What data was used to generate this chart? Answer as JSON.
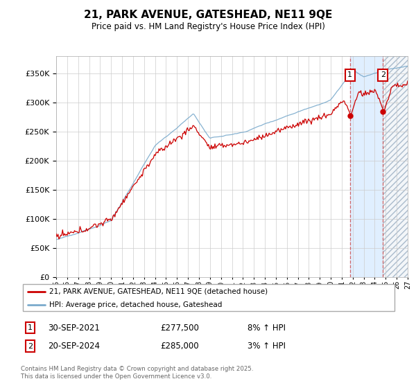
{
  "title": "21, PARK AVENUE, GATESHEAD, NE11 9QE",
  "subtitle": "Price paid vs. HM Land Registry's House Price Index (HPI)",
  "legend_line1": "21, PARK AVENUE, GATESHEAD, NE11 9QE (detached house)",
  "legend_line2": "HPI: Average price, detached house, Gateshead",
  "red_color": "#cc0000",
  "blue_color": "#7aaacc",
  "sale1_date": "30-SEP-2021",
  "sale1_price": "£277,500",
  "sale1_hpi": "8% ↑ HPI",
  "sale2_date": "20-SEP-2024",
  "sale2_price": "£285,000",
  "sale2_hpi": "3% ↑ HPI",
  "footnote": "Contains HM Land Registry data © Crown copyright and database right 2025.\nThis data is licensed under the Open Government Licence v3.0.",
  "ylim_min": 0,
  "ylim_max": 380000,
  "yticks": [
    0,
    50000,
    100000,
    150000,
    200000,
    250000,
    300000,
    350000
  ],
  "background_color": "#ffffff",
  "plot_bg_color": "#ffffff",
  "grid_color": "#cccccc",
  "sale1_x_year": 2021.75,
  "sale2_x_year": 2024.75,
  "xmin": 1995,
  "xmax": 2027
}
